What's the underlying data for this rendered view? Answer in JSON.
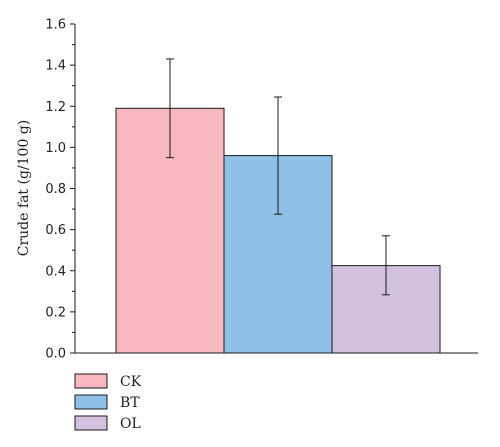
{
  "chart_data": {
    "type": "bar",
    "categories": [
      "CK",
      "BT",
      "OL"
    ],
    "values": [
      1.19,
      0.96,
      0.425
    ],
    "error_low": [
      0.95,
      0.675,
      0.283
    ],
    "error_high": [
      1.43,
      1.245,
      0.57
    ],
    "colors": [
      "#f7b9bf",
      "#8fc0e8",
      "#d3c1e0"
    ],
    "ylabel": "Crude fat (g/100 g)",
    "xlabel": "",
    "ylim": [
      0,
      1.6
    ],
    "yticks": [
      "0.0",
      "0.2",
      "0.4",
      "0.6",
      "0.8",
      "1.0",
      "1.2",
      "1.4",
      "1.6"
    ],
    "legend": {
      "placement": "bottom-left",
      "entries": [
        "CK",
        "BT",
        "OL"
      ]
    },
    "grid": false
  }
}
